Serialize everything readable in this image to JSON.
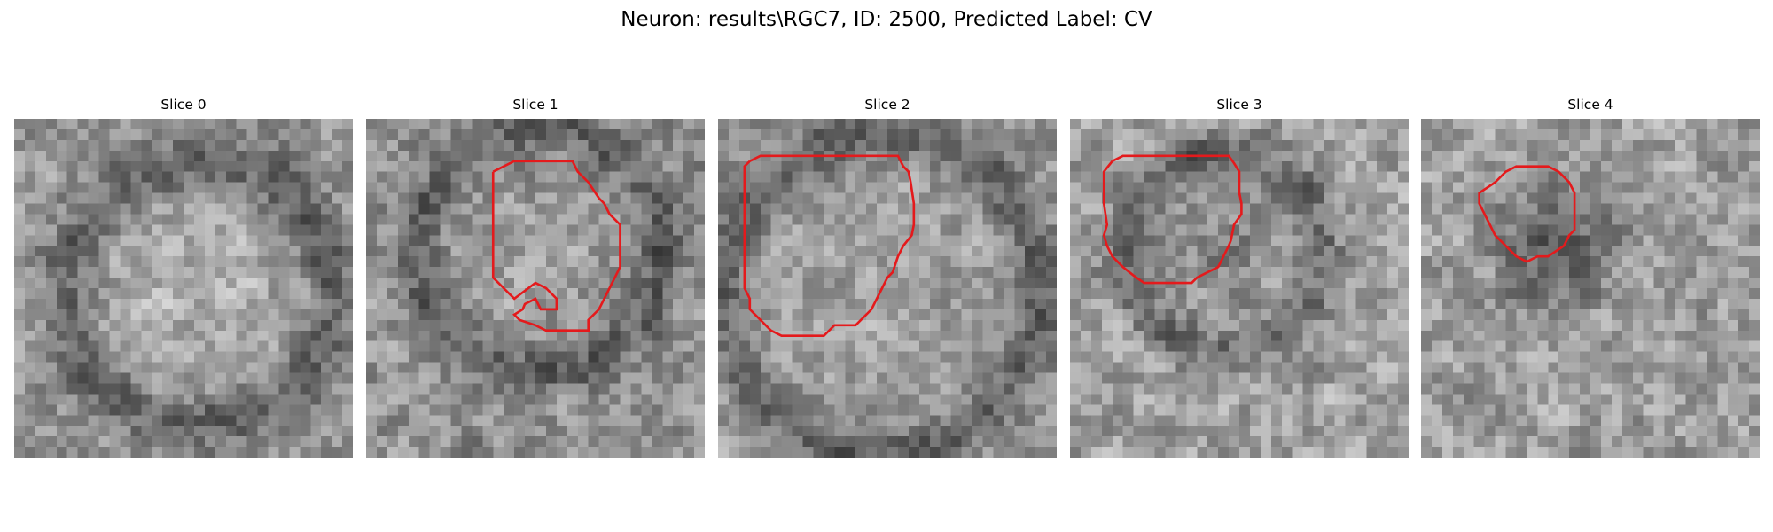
{
  "figure": {
    "suptitle": "Neuron: results\\RGC7, ID: 2500, Predicted Label: CV"
  },
  "colors": {
    "contour": "#e41a1c",
    "colormap": "gray"
  },
  "slices": [
    {
      "title": "Slice 0",
      "has_contour": false
    },
    {
      "title": "Slice 1",
      "has_contour": true
    },
    {
      "title": "Slice 2",
      "has_contour": true
    },
    {
      "title": "Slice 3",
      "has_contour": true
    },
    {
      "title": "Slice 4",
      "has_contour": true
    }
  ]
}
